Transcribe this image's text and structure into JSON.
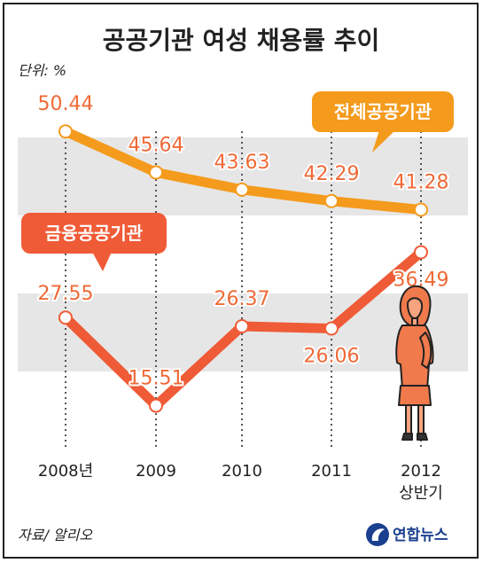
{
  "chart_data": {
    "type": "line",
    "title": "공공기관 여성 채용률 추이",
    "unit_label": "단위: %",
    "categories": [
      "2008년",
      "2009",
      "2010",
      "2011",
      "2012"
    ],
    "category_sublabels": [
      "",
      "",
      "",
      "",
      "상반기"
    ],
    "series": [
      {
        "name": "전체공공기관",
        "color": "#f49b1d",
        "values": [
          50.44,
          45.64,
          43.63,
          42.29,
          41.28
        ]
      },
      {
        "name": "금융공공기관",
        "color": "#ef5b36",
        "values": [
          27.55,
          15.51,
          26.37,
          26.06,
          36.49
        ]
      }
    ],
    "value_labels": [
      [
        "50.44",
        "45.64",
        "43.63",
        "42.29",
        "41.28"
      ],
      [
        "27.55",
        "15.51",
        "26.37",
        "26.06",
        "36.49"
      ]
    ],
    "grid": false,
    "background_bands": true,
    "legend_placement": "callouts",
    "source": "자료/ 알리오",
    "brand": "연합뉴스"
  }
}
